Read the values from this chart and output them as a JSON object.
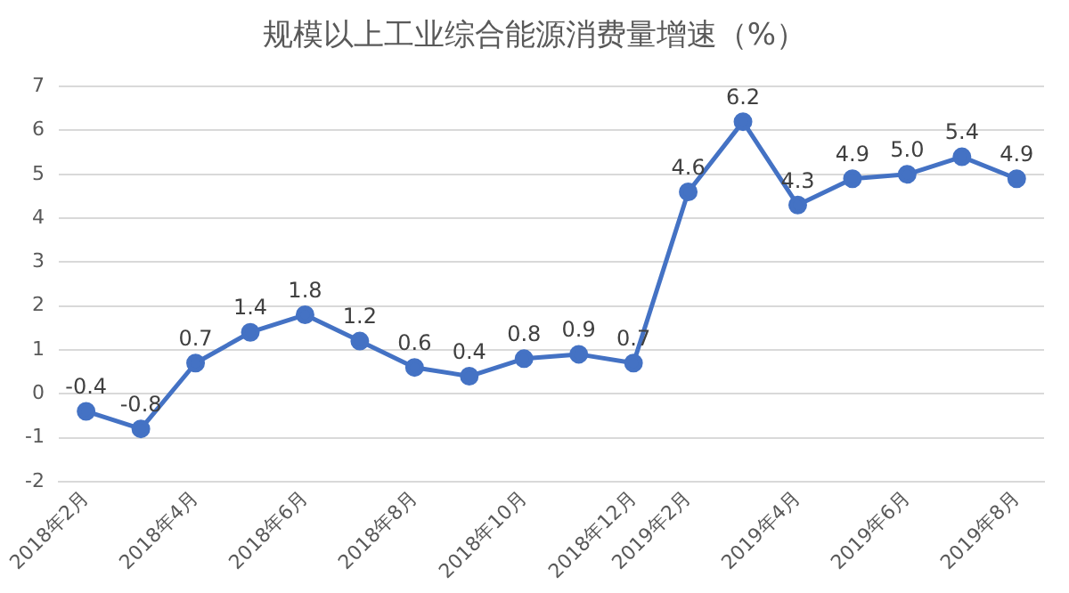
{
  "chart_data": {
    "type": "line",
    "title": "规模以上工业综合能源消费量增速（%）",
    "categories": [
      "2018年2月",
      null,
      "2018年4月",
      null,
      "2018年6月",
      null,
      "2018年8月",
      null,
      "2018年10月",
      null,
      "2018年12月",
      "2019年2月",
      null,
      "2019年4月",
      null,
      "2019年6月",
      null,
      "2019年8月"
    ],
    "series": [
      {
        "color": "#4472c4",
        "values": [
          -0.4,
          -0.8,
          0.7,
          1.4,
          1.8,
          1.2,
          0.6,
          0.4,
          0.8,
          0.9,
          0.7,
          4.6,
          6.2,
          4.3,
          4.9,
          5.0,
          5.4,
          4.9
        ],
        "value_labels": [
          "-0.4",
          "-0.8",
          "0.7",
          "1.4",
          "1.8",
          "1.2",
          "0.6",
          "0.4",
          "0.8",
          "0.9",
          "0.7",
          "4.6",
          "6.2",
          "4.3",
          "4.9",
          "5.0",
          "5.4",
          "4.9"
        ]
      }
    ],
    "ylim": [
      -2,
      7
    ],
    "yticks": [
      -2,
      -1,
      0,
      1,
      2,
      3,
      4,
      5,
      6,
      7
    ],
    "grid": "y",
    "legend": false,
    "marker": "circle",
    "line_style": "solid"
  }
}
